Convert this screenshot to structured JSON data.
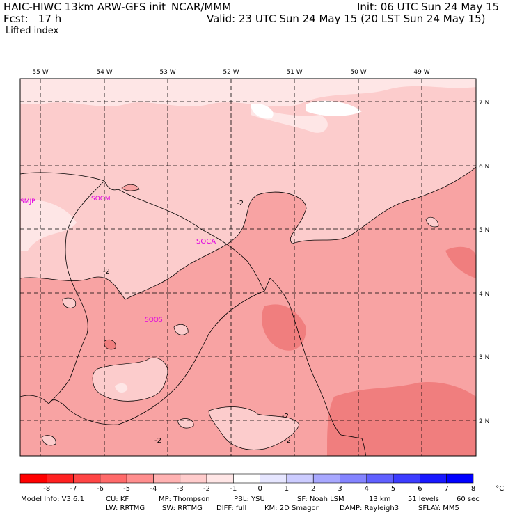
{
  "header": {
    "model": "HAIC-HIWC 13km ARW-GFS init",
    "org": "NCAR/MMM",
    "init": "Init: 06 UTC Sun 24 May 15",
    "fcst": "Fcst:   17 h",
    "valid": "Valid: 23 UTC Sun 24 May 15 (20 LST Sun 24 May 15)",
    "field": "Lifted index"
  },
  "map": {
    "lon_labels": [
      "55 W",
      "54 W",
      "53 W",
      "52 W",
      "51 W",
      "50 W",
      "49 W"
    ],
    "lat_labels": [
      "7 N",
      "6 N",
      "5 N",
      "4 N",
      "3 N",
      "2 N"
    ],
    "stations": [
      "SMJP",
      "SOGM",
      "SOCA",
      "SOOS"
    ],
    "contour_label": "-2",
    "colors": {
      "dark": "#f07e7e",
      "mid": "#f8a3a3",
      "light": "#fccccc",
      "pale": "#fee6e6",
      "white": "#ffffff"
    }
  },
  "colorbar": {
    "labels": [
      "-8",
      "-7",
      "-6",
      "-5",
      "-4",
      "-3",
      "-2",
      "-1",
      "0",
      "1",
      "2",
      "3",
      "4",
      "5",
      "6",
      "7",
      "8",
      "°C"
    ],
    "colors": [
      "#ff0000",
      "#ff2121",
      "#ff4545",
      "#ff6a6a",
      "#ff8e8e",
      "#ffb2b2",
      "#ffcccc",
      "#ffe6e6",
      "#ffffff",
      "#e6e6ff",
      "#ccccff",
      "#a8a8ff",
      "#8484ff",
      "#6060ff",
      "#3c3cff",
      "#1818ff",
      "#0000ff"
    ]
  },
  "footer": {
    "line1": {
      "model_info": "Model Info: V3.6.1",
      "cu": "CU: KF",
      "mp": "MP: Thompson",
      "pbl": "PBL: YSU",
      "sf": "SF: Noah LSM",
      "res": "13 km",
      "levels": "51 levels",
      "dt": "60 sec"
    },
    "line2": {
      "lw": "LW: RRTMG",
      "sw": "SW: RRTMG",
      "diff": "DIFF: full",
      "km": "KM: 2D Smagor",
      "damp": "DAMP: Rayleigh3",
      "sflay": "SFLAY: MM5"
    }
  }
}
